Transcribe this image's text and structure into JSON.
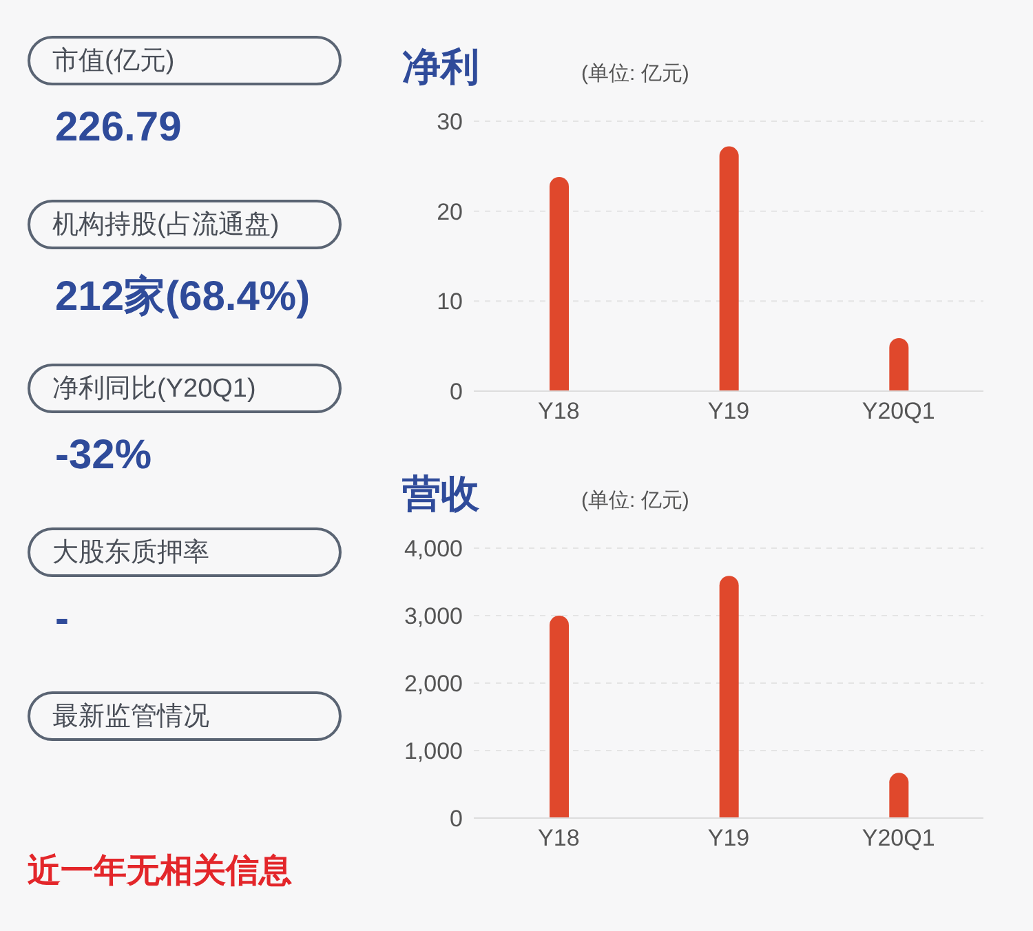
{
  "chart_data": [
    {
      "type": "other",
      "annotations": [
        "市值(亿元)",
        "226.79",
        "机构持股(占流通盘)",
        "212家(68.4%)",
        "净利同比(Y20Q1)",
        "-32%",
        "大股东质押率",
        "-",
        "最新监管情况",
        "近一年无相关信息"
      ]
    },
    {
      "type": "bar",
      "title": "净利",
      "subtitle": "(单位: 亿元)",
      "categories": [
        "Y18",
        "Y19",
        "Y20Q1"
      ],
      "values": [
        23.8,
        27.2,
        5.9
      ],
      "color": "#e0482c",
      "ylim": [
        0,
        30
      ],
      "yticks": [
        0,
        10,
        20,
        30
      ],
      "grid": "y"
    },
    {
      "type": "bar",
      "title": "营收",
      "subtitle": "(单位: 亿元)",
      "categories": [
        "Y18",
        "Y19",
        "Y20Q1"
      ],
      "values": [
        3000,
        3590,
        670
      ],
      "color": "#e0482c",
      "ylim": [
        0,
        4000
      ],
      "yticks": [
        0,
        {
          "value": 1000,
          "label": "1,000"
        },
        {
          "value": 2000,
          "label": "2,000"
        },
        {
          "value": 3000,
          "label": "3,000"
        },
        {
          "value": 4000,
          "label": "4,000"
        }
      ],
      "grid": "y"
    }
  ]
}
